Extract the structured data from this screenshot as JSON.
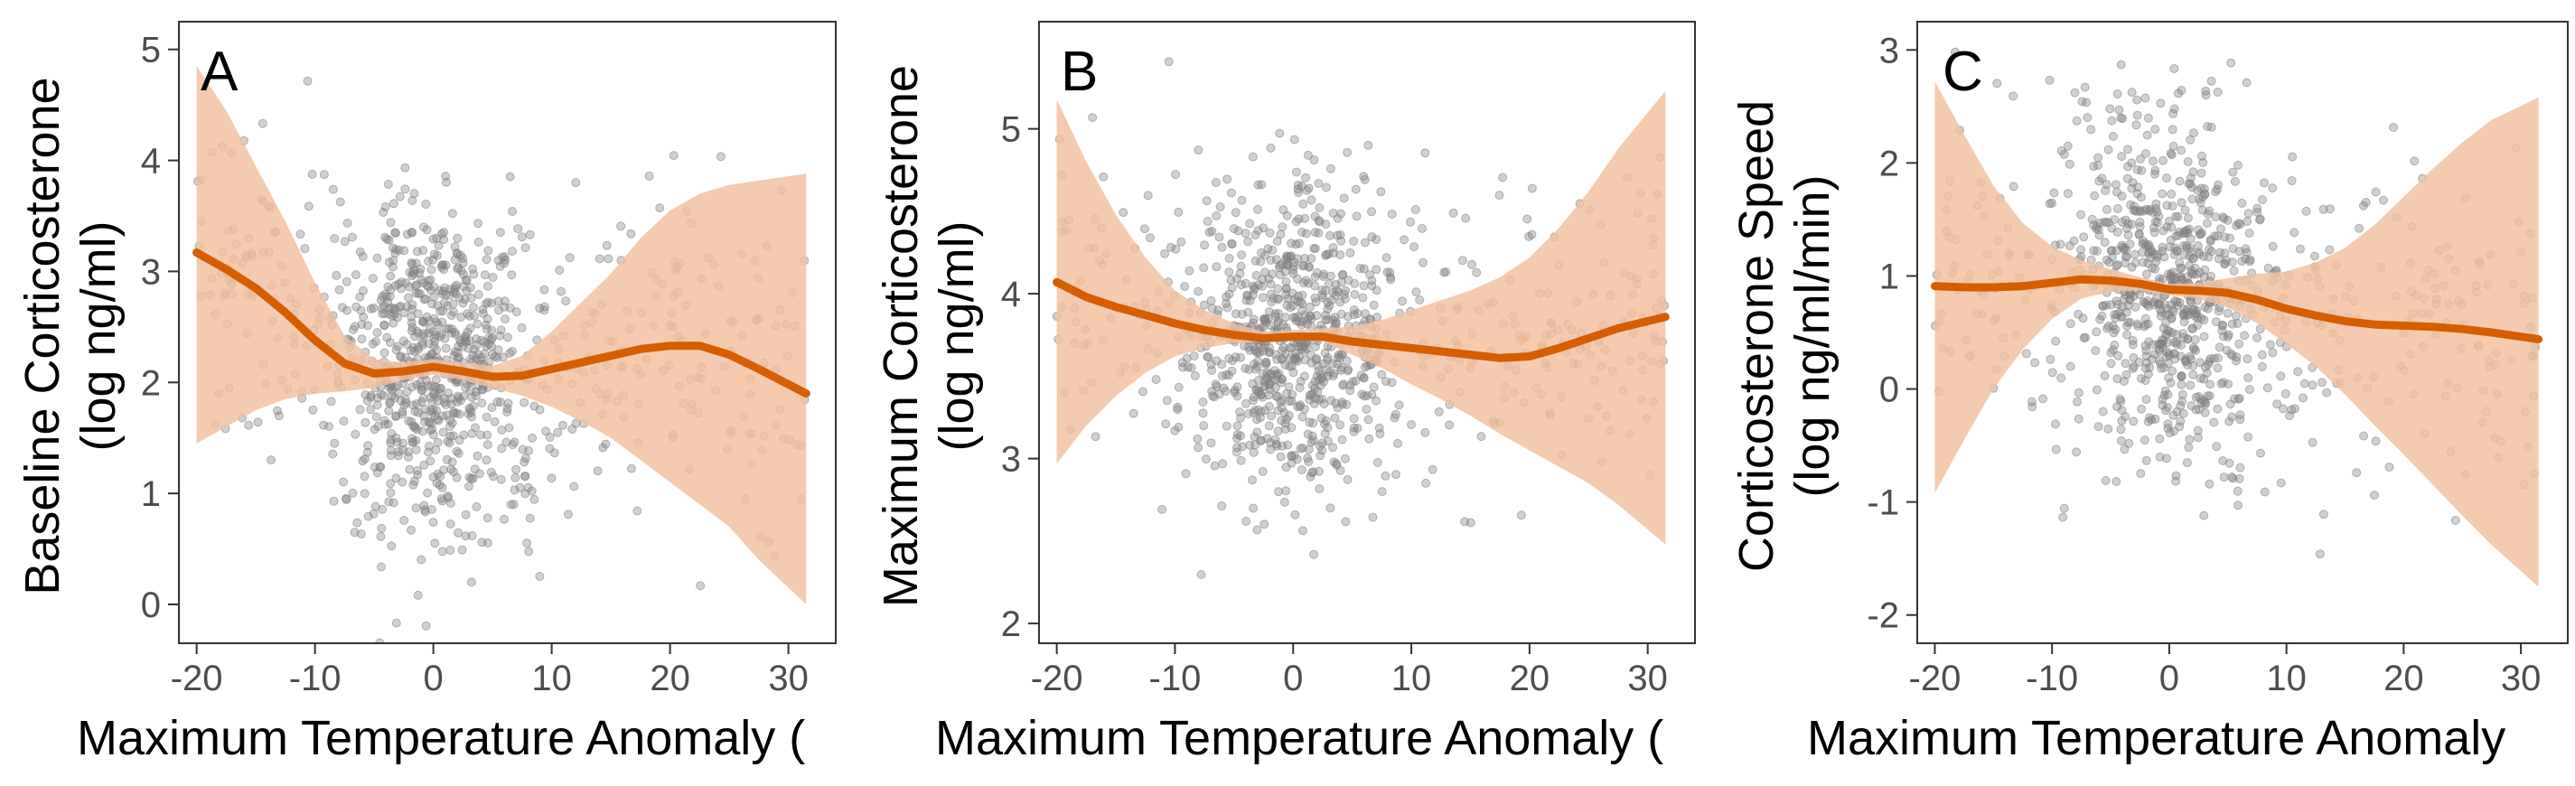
{
  "chart_data": [
    {
      "type": "scatter",
      "panel_label": "A",
      "xlabel": "Maximum Temperature Anomaly (",
      "ylabel_lines": [
        "Baseline Corticosterone",
        "(log ng/ml)"
      ],
      "xlim": [
        -21.5,
        34
      ],
      "ylim": [
        -0.35,
        5.25
      ],
      "xticks": [
        -20,
        -10,
        0,
        10,
        20,
        30
      ],
      "xtick_labels": [
        "-20",
        "-10",
        "0",
        "10",
        "20",
        "30"
      ],
      "yticks": [
        0,
        1,
        2,
        3,
        4,
        5
      ],
      "ytick_labels": [
        "0",
        "1",
        "2",
        "3",
        "4",
        "5"
      ],
      "grid": false,
      "colors": {
        "points": "#808080",
        "smooth": "#d55e00",
        "band": "#f2c09c"
      },
      "series": [
        {
          "kind": "smooth",
          "x": [
            -20,
            -17.5,
            -15,
            -12.5,
            -10,
            -7.5,
            -5,
            -2.5,
            0,
            2.5,
            5,
            7.5,
            10,
            12.5,
            15,
            17.5,
            20,
            22.5,
            25,
            27.5,
            31.5
          ],
          "y": [
            3.17,
            3.02,
            2.85,
            2.63,
            2.38,
            2.17,
            2.08,
            2.1,
            2.14,
            2.1,
            2.05,
            2.06,
            2.12,
            2.18,
            2.24,
            2.3,
            2.33,
            2.33,
            2.25,
            2.12,
            1.9
          ],
          "lower": [
            1.45,
            1.6,
            1.75,
            1.85,
            1.9,
            1.92,
            1.95,
            2.02,
            2.07,
            2.02,
            1.95,
            1.88,
            1.78,
            1.65,
            1.5,
            1.3,
            1.1,
            0.9,
            0.7,
            0.4,
            0.0
          ],
          "upper": [
            4.85,
            4.45,
            3.95,
            3.45,
            2.9,
            2.42,
            2.21,
            2.18,
            2.21,
            2.18,
            2.15,
            2.24,
            2.46,
            2.72,
            2.98,
            3.3,
            3.55,
            3.7,
            3.78,
            3.82,
            3.88
          ]
        }
      ],
      "scatter": {
        "n": 1000,
        "center": 0,
        "spread": [
          0.62,
          2.2
        ],
        "level_curve": "smooth",
        "sd": 0.72
      }
    },
    {
      "type": "scatter",
      "panel_label": "B",
      "xlabel": "Maximum Temperature Anomaly (",
      "ylabel_lines": [
        "Maximum Corticosterone",
        "(log ng/ml)"
      ],
      "xlim": [
        -21.5,
        34
      ],
      "ylim": [
        1.88,
        5.65
      ],
      "xticks": [
        -20,
        -10,
        0,
        10,
        20,
        30
      ],
      "xtick_labels": [
        "-20",
        "-10",
        "0",
        "10",
        "20",
        "30"
      ],
      "yticks": [
        2,
        3,
        4,
        5
      ],
      "ytick_labels": [
        "2",
        "3",
        "4",
        "5"
      ],
      "grid": false,
      "colors": {
        "points": "#808080",
        "smooth": "#d55e00",
        "band": "#f2c09c"
      },
      "series": [
        {
          "kind": "smooth",
          "x": [
            -20,
            -17.5,
            -15,
            -12.5,
            -10,
            -7.5,
            -5,
            -2.5,
            0,
            2.5,
            5,
            7.5,
            10,
            12.5,
            15,
            17.5,
            20,
            22.5,
            25,
            27.5,
            31.5
          ],
          "y": [
            4.07,
            3.98,
            3.92,
            3.87,
            3.82,
            3.78,
            3.75,
            3.73,
            3.74,
            3.74,
            3.71,
            3.69,
            3.67,
            3.65,
            3.63,
            3.61,
            3.62,
            3.67,
            3.73,
            3.79,
            3.86
          ],
          "lower": [
            2.97,
            3.2,
            3.38,
            3.52,
            3.62,
            3.67,
            3.7,
            3.71,
            3.72,
            3.71,
            3.63,
            3.55,
            3.45,
            3.36,
            3.26,
            3.15,
            3.05,
            2.95,
            2.85,
            2.72,
            2.48
          ],
          "upper": [
            5.18,
            4.8,
            4.48,
            4.22,
            4.02,
            3.9,
            3.82,
            3.77,
            3.78,
            3.79,
            3.8,
            3.84,
            3.9,
            3.96,
            4.02,
            4.1,
            4.22,
            4.4,
            4.62,
            4.88,
            5.23
          ]
        }
      ],
      "scatter": {
        "n": 1000,
        "center": 0,
        "spread": [
          0.62,
          2.2
        ],
        "level_curve": "smooth",
        "sd": 0.44
      }
    },
    {
      "type": "scatter",
      "panel_label": "C",
      "xlabel": "Maximum Temperature Anomaly",
      "ylabel_lines": [
        "Corticosterone Speed",
        "(log ng/ml/min)"
      ],
      "xlim": [
        -21.5,
        34
      ],
      "ylim": [
        -2.25,
        3.25
      ],
      "xticks": [
        -20,
        -10,
        0,
        10,
        20,
        30
      ],
      "xtick_labels": [
        "-20",
        "-10",
        "0",
        "10",
        "20",
        "30"
      ],
      "yticks": [
        -2,
        -1,
        0,
        1,
        2,
        3
      ],
      "ytick_labels": [
        "-2",
        "-1",
        "0",
        "1",
        "2",
        "3"
      ],
      "grid": false,
      "colors": {
        "points": "#808080",
        "smooth": "#d55e00",
        "band": "#f2c09c"
      },
      "series": [
        {
          "kind": "smooth",
          "x": [
            -20,
            -17.5,
            -15,
            -12.5,
            -10,
            -7.5,
            -5,
            -2.5,
            0,
            2.5,
            5,
            7.5,
            10,
            12.5,
            15,
            17.5,
            20,
            22.5,
            25,
            27.5,
            31.5
          ],
          "y": [
            0.91,
            0.9,
            0.9,
            0.91,
            0.94,
            0.97,
            0.96,
            0.93,
            0.88,
            0.87,
            0.85,
            0.79,
            0.71,
            0.65,
            0.6,
            0.57,
            0.56,
            0.55,
            0.53,
            0.5,
            0.44
          ],
          "lower": [
            -0.92,
            -0.45,
            0.0,
            0.35,
            0.62,
            0.8,
            0.86,
            0.87,
            0.83,
            0.8,
            0.72,
            0.58,
            0.4,
            0.2,
            -0.05,
            -0.32,
            -0.58,
            -0.85,
            -1.12,
            -1.38,
            -1.75
          ],
          "upper": [
            2.72,
            2.25,
            1.8,
            1.47,
            1.26,
            1.14,
            1.06,
            0.99,
            0.93,
            0.94,
            0.98,
            1.02,
            1.04,
            1.12,
            1.25,
            1.45,
            1.7,
            1.95,
            2.18,
            2.38,
            2.58
          ]
        }
      ],
      "scatter": {
        "n": 1000,
        "center": 0,
        "spread": [
          0.62,
          2.2
        ],
        "level_curve": "smooth",
        "sd": 0.75
      }
    }
  ]
}
